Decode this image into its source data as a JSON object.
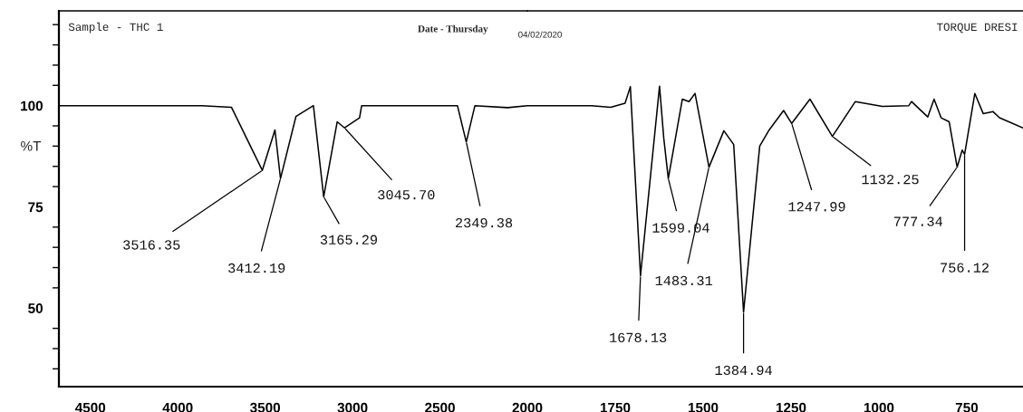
{
  "chart_data": [
    {
      "type": "line",
      "ylabel": "%T",
      "annotations": [
        "Sample - THC 1",
        "Date - Thursday",
        "04/02/2020",
        {
          "text": "3516.35",
          "x": 3516.35,
          "y": 84
        },
        {
          "text": "3412.19",
          "x": 3412.19,
          "y": 82
        },
        {
          "text": "3165.29",
          "x": 3165.29,
          "y": 77.5
        },
        {
          "text": "3045.70",
          "x": 3045.7,
          "y": 94.5
        },
        {
          "text": "2349.38",
          "x": 2349.38,
          "y": 91
        }
      ],
      "series": [
        {
          "color": "#000000",
          "x": [
            4680,
            4466,
            3861,
            3693,
            3516.35,
            3444,
            3412.19,
            3324,
            3224,
            3165.29,
            3088,
            3045.7,
            2960,
            2948,
            2800,
            2600,
            2400,
            2349.38,
            2300,
            2113,
            2000
          ],
          "values": [
            100,
            100,
            100,
            99.6,
            84,
            94,
            82,
            97.3,
            100,
            77.5,
            96,
            94.5,
            97,
            100,
            100,
            100,
            100,
            91,
            100,
            99.5,
            100
          ]
        }
      ],
      "xlim": [
        4680,
        2000
      ],
      "xticks": [
        4500,
        4000,
        3500,
        3000,
        2500
      ],
      "ylim": [
        30.6,
        123.4
      ],
      "yticks": [
        {
          "value": 35,
          "label": null
        },
        {
          "value": 40,
          "label": null
        },
        {
          "value": 45,
          "label": null
        },
        50,
        {
          "value": 55,
          "label": null
        },
        {
          "value": 60,
          "label": null
        },
        {
          "value": 65,
          "label": null
        },
        {
          "value": 70,
          "label": null
        },
        75,
        {
          "value": 80,
          "label": null
        },
        {
          "value": 85,
          "label": null
        },
        {
          "value": 90,
          "label": null
        },
        {
          "value": 95,
          "label": null
        },
        100,
        {
          "value": 105,
          "label": null
        },
        {
          "value": 110,
          "label": null
        },
        {
          "value": 115,
          "label": null
        },
        {
          "value": 120,
          "label": null
        }
      ],
      "grid": false,
      "legend": false,
      "marker": "none",
      "line_style": "solid"
    },
    {
      "type": "line",
      "annotations": [
        "TORQUE DRESI",
        {
          "text": "1599.04",
          "x": 1599.04,
          "y": 82
        },
        {
          "text": "1678.13",
          "x": 1678.13,
          "y": 58
        },
        {
          "text": "1483.31",
          "x": 1483.31,
          "y": 84.8
        },
        {
          "text": "1384.94",
          "x": 1384.94,
          "y": 49
        },
        {
          "text": "1247.99",
          "x": 1247.99,
          "y": 95.6
        },
        {
          "text": "1132.25",
          "x": 1132.25,
          "y": 92.4
        },
        {
          "text": "777.34",
          "x": 777.34,
          "y": 84.8
        },
        {
          "text": "756.12",
          "x": 756.12,
          "y": 88
        }
      ],
      "series": [
        {
          "color": "#000000",
          "x": [
            2000,
            1938,
            1817,
            1763,
            1722,
            1707,
            1678.13,
            1624,
            1612,
            1599.04,
            1559,
            1540,
            1523,
            1483.31,
            1441,
            1413,
            1384.94,
            1339,
            1312,
            1271,
            1247.99,
            1196,
            1132.25,
            1067,
            990,
            915,
            907,
            861,
            843,
            823,
            800,
            777.34,
            763,
            756.12,
            727,
            703,
            675,
            657,
            590
          ],
          "values": [
            100,
            100,
            100,
            99.6,
            100.6,
            104.7,
            58,
            104.8,
            92,
            82,
            101.6,
            101,
            103,
            84.8,
            93.8,
            90.4,
            49,
            90,
            94,
            98.8,
            95.6,
            101.6,
            92.4,
            101,
            99.8,
            100,
            101,
            97.2,
            101.6,
            97,
            96,
            84.8,
            89,
            88,
            103,
            98,
            98.5,
            97,
            94.5
          ]
        }
      ],
      "xlim": [
        2000,
        590
      ],
      "xticks": [
        2000,
        1750,
        1500,
        1250,
        1000,
        750
      ],
      "ylim": [
        30.6,
        123.4
      ],
      "tick_labels": "x",
      "grid": false,
      "legend": false,
      "marker": "none",
      "line_style": "solid"
    }
  ]
}
